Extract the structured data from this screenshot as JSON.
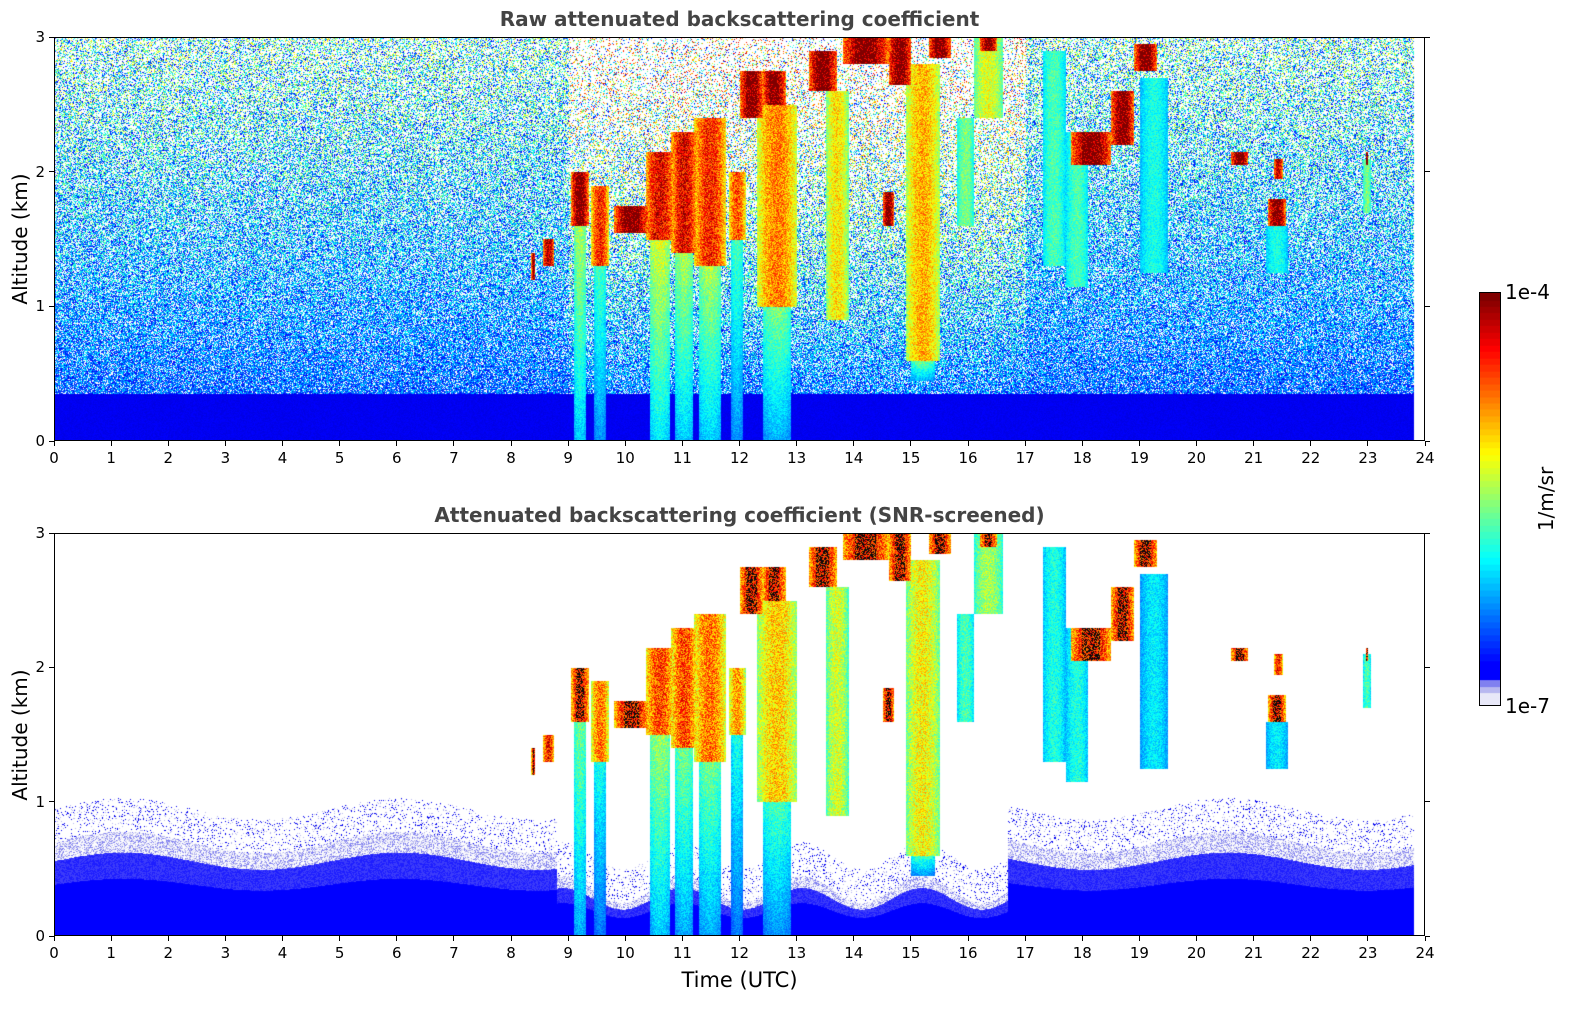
{
  "chart_data": [
    {
      "type": "heatmap",
      "title": "Raw attenuated backscattering coefficient",
      "xlabel": "",
      "ylabel": "Altitude (km)",
      "xlim": [
        0,
        24
      ],
      "ylim": [
        0,
        3
      ],
      "xticks": [
        "0",
        "1",
        "2",
        "3",
        "4",
        "5",
        "6",
        "7",
        "8",
        "9",
        "10",
        "11",
        "12",
        "13",
        "14",
        "15",
        "16",
        "17",
        "18",
        "19",
        "20",
        "21",
        "22",
        "23",
        "24"
      ],
      "yticks": [
        "0",
        "1",
        "2",
        "3"
      ],
      "data_time_range": [
        0,
        23.8
      ],
      "screened": false
    },
    {
      "type": "heatmap",
      "title": "Attenuated backscattering coefficient (SNR-screened)",
      "xlabel": "Time (UTC)",
      "ylabel": "Altitude (km)",
      "xlim": [
        0,
        24
      ],
      "ylim": [
        0,
        3
      ],
      "xticks": [
        "0",
        "1",
        "2",
        "3",
        "4",
        "5",
        "6",
        "7",
        "8",
        "9",
        "10",
        "11",
        "12",
        "13",
        "14",
        "15",
        "16",
        "17",
        "18",
        "19",
        "20",
        "21",
        "22",
        "23",
        "24"
      ],
      "yticks": [
        "0",
        "1",
        "2",
        "3"
      ],
      "data_time_range": [
        0,
        23.8
      ],
      "screened": true
    }
  ],
  "colorbar": {
    "label": "1/m/sr",
    "max_label": "1e-4",
    "min_label": "1e-7",
    "scale": "log",
    "colormap": "jet",
    "low_end_colors": [
      "#e8e8f8",
      "#b8b8f0",
      "#8080f0",
      "#0000ff"
    ]
  },
  "cloud_features": [
    {
      "t0": 8.35,
      "t1": 8.42,
      "base": 1.2,
      "top": 1.4,
      "intensity": 1.0
    },
    {
      "t0": 8.55,
      "t1": 8.75,
      "base": 1.3,
      "top": 1.5,
      "intensity": 0.95
    },
    {
      "t0": 9.05,
      "t1": 9.35,
      "base": 1.6,
      "top": 2.0,
      "intensity": 1.0,
      "fall_to": 0.0,
      "fall_intensity": 0.55
    },
    {
      "t0": 9.4,
      "t1": 9.7,
      "base": 1.3,
      "top": 1.9,
      "intensity": 0.85,
      "fall_to": 0.0,
      "fall_intensity": 0.45
    },
    {
      "t0": 9.8,
      "t1": 10.4,
      "base": 1.55,
      "top": 1.75,
      "intensity": 1.0
    },
    {
      "t0": 10.35,
      "t1": 10.85,
      "base": 1.5,
      "top": 2.15,
      "intensity": 0.9,
      "fall_to": 0.0,
      "fall_intensity": 0.6
    },
    {
      "t0": 10.8,
      "t1": 11.25,
      "base": 1.4,
      "top": 2.3,
      "intensity": 0.9,
      "fall_to": 0.0,
      "fall_intensity": 0.55
    },
    {
      "t0": 11.2,
      "t1": 11.75,
      "base": 1.3,
      "top": 2.4,
      "intensity": 0.85,
      "fall_to": 0.0,
      "fall_intensity": 0.55
    },
    {
      "t0": 11.8,
      "t1": 12.1,
      "base": 1.5,
      "top": 2.0,
      "intensity": 0.8,
      "fall_to": 0.0,
      "fall_intensity": 0.45
    },
    {
      "t0": 12.0,
      "t1": 12.4,
      "base": 2.4,
      "top": 2.75,
      "intensity": 1.0
    },
    {
      "t0": 12.4,
      "t1": 12.8,
      "base": 2.5,
      "top": 2.75,
      "intensity": 1.0
    },
    {
      "t0": 12.3,
      "t1": 13.0,
      "base": 1.0,
      "top": 2.5,
      "intensity": 0.75,
      "fall_to": 0.0,
      "fall_intensity": 0.5
    },
    {
      "t0": 13.2,
      "t1": 13.7,
      "base": 2.6,
      "top": 2.9,
      "intensity": 1.0
    },
    {
      "t0": 13.5,
      "t1": 13.9,
      "base": 0.9,
      "top": 2.6,
      "intensity": 0.65
    },
    {
      "t0": 13.8,
      "t1": 14.6,
      "base": 2.8,
      "top": 3.0,
      "intensity": 1.0
    },
    {
      "t0": 14.5,
      "t1": 14.7,
      "base": 1.6,
      "top": 1.85,
      "intensity": 1.0
    },
    {
      "t0": 14.6,
      "t1": 15.0,
      "base": 2.65,
      "top": 3.0,
      "intensity": 1.0
    },
    {
      "t0": 14.9,
      "t1": 15.5,
      "base": 0.6,
      "top": 2.8,
      "intensity": 0.7,
      "fall_to": 0.45,
      "fall_intensity": 0.5
    },
    {
      "t0": 15.3,
      "t1": 15.7,
      "base": 2.85,
      "top": 3.0,
      "intensity": 1.0
    },
    {
      "t0": 15.8,
      "t1": 16.1,
      "base": 1.6,
      "top": 2.4,
      "intensity": 0.5
    },
    {
      "t0": 16.1,
      "t1": 16.6,
      "base": 2.4,
      "top": 3.0,
      "intensity": 0.6
    },
    {
      "t0": 16.2,
      "t1": 16.5,
      "base": 2.9,
      "top": 3.0,
      "intensity": 1.0
    },
    {
      "t0": 17.3,
      "t1": 17.7,
      "base": 1.3,
      "top": 2.9,
      "intensity": 0.45
    },
    {
      "t0": 17.7,
      "t1": 18.1,
      "base": 1.15,
      "top": 2.3,
      "intensity": 0.45
    },
    {
      "t0": 17.8,
      "t1": 18.5,
      "base": 2.05,
      "top": 2.3,
      "intensity": 1.0
    },
    {
      "t0": 18.5,
      "t1": 18.9,
      "base": 2.2,
      "top": 2.6,
      "intensity": 1.0
    },
    {
      "t0": 18.9,
      "t1": 19.3,
      "base": 2.75,
      "top": 2.95,
      "intensity": 1.0
    },
    {
      "t0": 19.0,
      "t1": 19.5,
      "base": 1.25,
      "top": 2.7,
      "intensity": 0.4
    },
    {
      "t0": 20.6,
      "t1": 20.9,
      "base": 2.05,
      "top": 2.15,
      "intensity": 1.0
    },
    {
      "t0": 21.25,
      "t1": 21.55,
      "base": 1.6,
      "top": 1.8,
      "intensity": 1.0
    },
    {
      "t0": 21.35,
      "t1": 21.5,
      "base": 1.95,
      "top": 2.1,
      "intensity": 0.95
    },
    {
      "t0": 21.2,
      "t1": 21.6,
      "base": 1.25,
      "top": 1.6,
      "intensity": 0.4
    },
    {
      "t0": 22.9,
      "t1": 23.05,
      "base": 1.7,
      "top": 2.1,
      "intensity": 0.5
    },
    {
      "t0": 22.95,
      "t1": 23.0,
      "base": 2.05,
      "top": 2.15,
      "intensity": 1.0
    }
  ]
}
